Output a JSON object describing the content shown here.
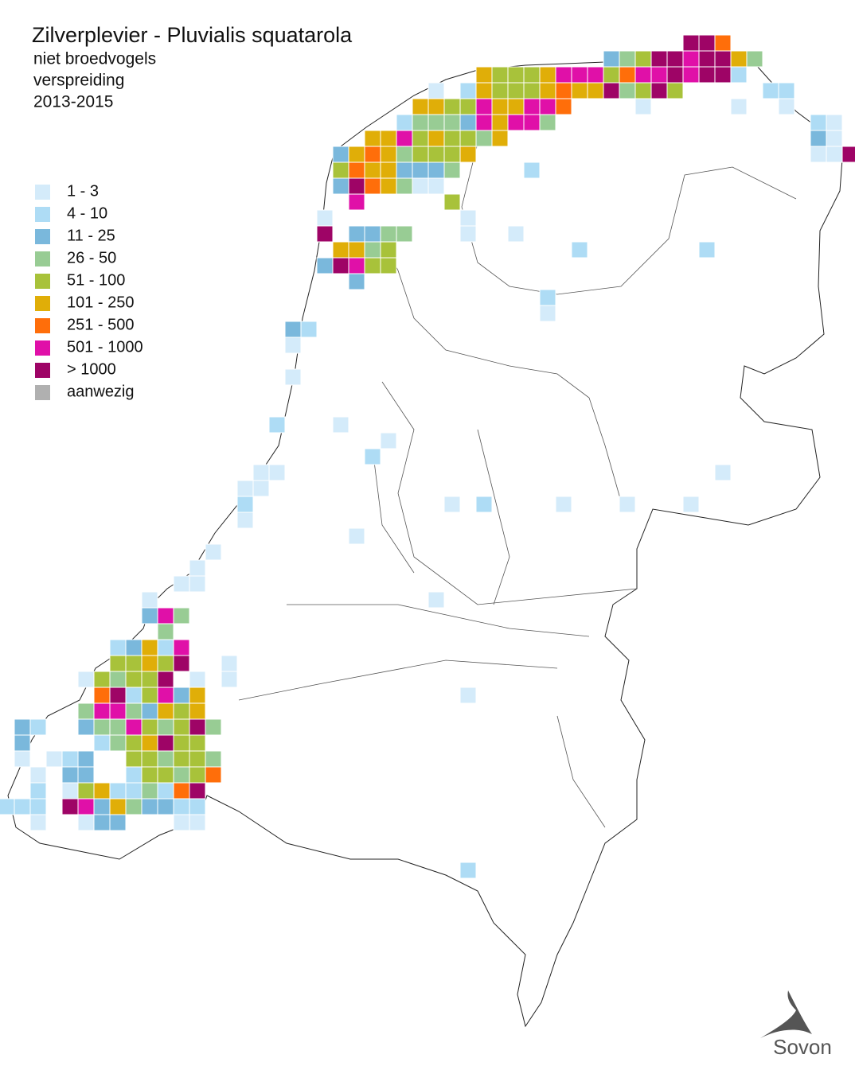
{
  "header": {
    "title": "Zilverplevier - Pluvialis squatarola",
    "lines": [
      "niet broedvogels",
      "verspreiding",
      "2013-2015"
    ]
  },
  "legend": [
    {
      "label": "1 - 3",
      "color": "#d4ebfa"
    },
    {
      "label": "4 - 10",
      "color": "#aedcf5"
    },
    {
      "label": "11 - 25",
      "color": "#7ab8dc"
    },
    {
      "label": "26 - 50",
      "color": "#98cc94"
    },
    {
      "label": "51 - 100",
      "color": "#a8c23a"
    },
    {
      "label": "101 - 250",
      "color": "#e0ae08"
    },
    {
      "label": "251 - 500",
      "color": "#ff6e0a"
    },
    {
      "label": "501 - 1000",
      "color": "#e010a8"
    },
    {
      "label": "> 1000",
      "color": "#9e0466"
    },
    {
      "label": "aanwezig",
      "color": "#b0b0b0"
    }
  ],
  "logo": {
    "text": "Sovon"
  }
}
